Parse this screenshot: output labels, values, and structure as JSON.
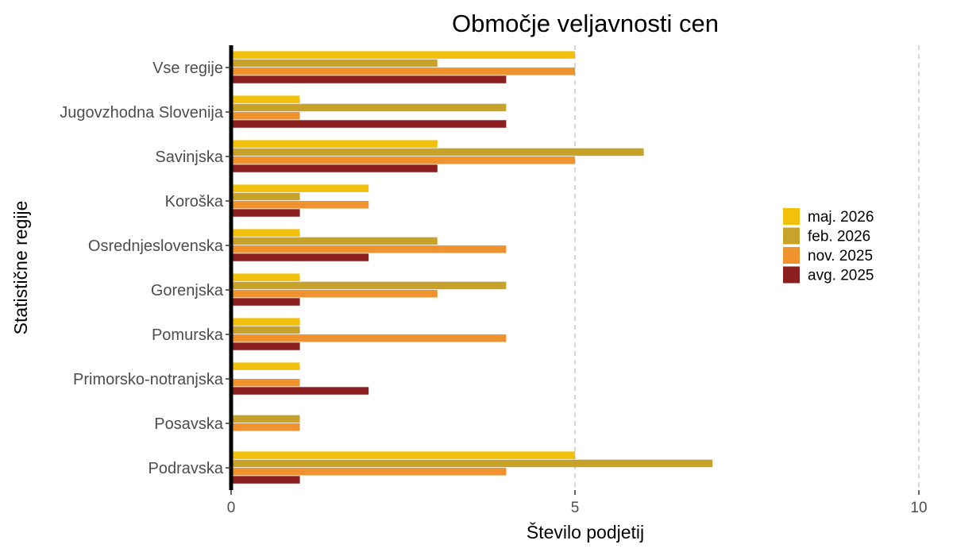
{
  "chart_data": {
    "type": "bar",
    "orientation": "horizontal",
    "title": "Območje veljavnosti cen",
    "xlabel": "Število podjetij",
    "ylabel": "Statistične regije",
    "xlim": [
      0,
      10
    ],
    "xticks": [
      0,
      5,
      10
    ],
    "grid": "dashed vertical lines at 5 and 10",
    "legend_position": "right",
    "categories": [
      "Vse regije",
      "Jugovzhodna Slovenija",
      "Savinjska",
      "Koroška",
      "Osrednjeslovenska",
      "Gorenjska",
      "Pomurska",
      "Primorsko-notranjska",
      "Posavska",
      "Podravska"
    ],
    "series": [
      {
        "name": "maj. 2026",
        "color": "#F2C10E",
        "values": [
          5,
          1,
          3,
          2,
          1,
          1,
          1,
          1,
          0,
          5
        ]
      },
      {
        "name": "feb. 2026",
        "color": "#C9A22A",
        "values": [
          3,
          4,
          6,
          1,
          3,
          4,
          1,
          0,
          1,
          7
        ]
      },
      {
        "name": "nov. 2025",
        "color": "#F0922E",
        "values": [
          5,
          1,
          5,
          2,
          4,
          3,
          4,
          1,
          1,
          4
        ]
      },
      {
        "name": "avg. 2025",
        "color": "#8B1F1F",
        "values": [
          4,
          4,
          3,
          1,
          2,
          1,
          1,
          2,
          0,
          1
        ]
      }
    ]
  }
}
